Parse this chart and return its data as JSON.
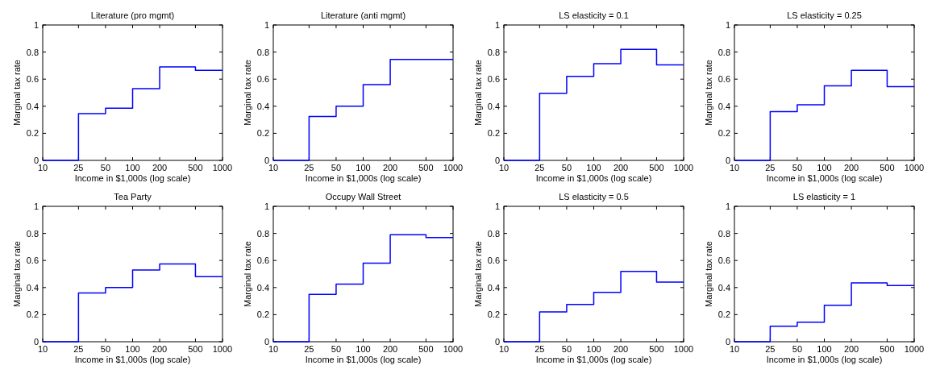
{
  "chart_data": [
    {
      "type": "step",
      "title": "Literature (pro mgmt)",
      "xlabel": "Income in $1,000s (log scale)",
      "ylabel": "Marginal tax rate",
      "log": "x",
      "x": [
        10,
        25,
        50,
        100,
        200,
        500,
        1000
      ],
      "series": [
        {
          "color": "#0000ff",
          "values": [
            0,
            0.345,
            0.385,
            0.53,
            0.69,
            0.665,
            0.665
          ]
        }
      ],
      "xlim": [
        10,
        1000
      ],
      "xticks": [
        10,
        25,
        50,
        100,
        200,
        500,
        1000
      ],
      "ylim": [
        0,
        1
      ],
      "yticks": [
        0,
        0.2,
        0.4,
        0.6,
        0.8,
        1
      ]
    },
    {
      "type": "step",
      "title": "Literature (anti mgmt)",
      "xlabel": "Income in $1,000s (log scale)",
      "ylabel": "Marginal tax rate",
      "log": "x",
      "x": [
        10,
        25,
        50,
        100,
        200,
        500,
        1000
      ],
      "series": [
        {
          "color": "#0000ff",
          "values": [
            0,
            0.325,
            0.4,
            0.56,
            0.745,
            0.745,
            0.745
          ]
        }
      ],
      "xlim": [
        10,
        1000
      ],
      "xticks": [
        10,
        25,
        50,
        100,
        200,
        500,
        1000
      ],
      "ylim": [
        0,
        1
      ],
      "yticks": [
        0,
        0.2,
        0.4,
        0.6,
        0.8,
        1
      ]
    },
    {
      "type": "step",
      "title": "LS elasticity = 0.1",
      "xlabel": "Income in $1,000s (log scale)",
      "ylabel": "Marginal tax rate",
      "log": "x",
      "x": [
        10,
        25,
        50,
        100,
        200,
        500,
        1000
      ],
      "series": [
        {
          "color": "#0000ff",
          "values": [
            0,
            0.495,
            0.62,
            0.715,
            0.82,
            0.705,
            0.705
          ]
        }
      ],
      "xlim": [
        10,
        1000
      ],
      "xticks": [
        10,
        25,
        50,
        100,
        200,
        500,
        1000
      ],
      "ylim": [
        0,
        1
      ],
      "yticks": [
        0,
        0.2,
        0.4,
        0.6,
        0.8,
        1
      ]
    },
    {
      "type": "step",
      "title": "LS elasticity = 0.25",
      "xlabel": "Income in $1,000s (log scale)",
      "ylabel": "Marginal tax rate",
      "log": "x",
      "x": [
        10,
        25,
        50,
        100,
        200,
        500,
        1000
      ],
      "series": [
        {
          "color": "#0000ff",
          "values": [
            0,
            0.36,
            0.41,
            0.55,
            0.665,
            0.545,
            0.545
          ]
        }
      ],
      "xlim": [
        10,
        1000
      ],
      "xticks": [
        10,
        25,
        50,
        100,
        200,
        500,
        1000
      ],
      "ylim": [
        0,
        1
      ],
      "yticks": [
        0,
        0.2,
        0.4,
        0.6,
        0.8,
        1
      ]
    },
    {
      "type": "step",
      "title": "Tea Party",
      "xlabel": "Income in $1,000s (log scale)",
      "ylabel": "Marginal tax rate",
      "log": "x",
      "x": [
        10,
        25,
        50,
        100,
        200,
        500,
        1000
      ],
      "series": [
        {
          "color": "#0000ff",
          "values": [
            0,
            0.36,
            0.4,
            0.53,
            0.575,
            0.48,
            0.48
          ]
        }
      ],
      "xlim": [
        10,
        1000
      ],
      "xticks": [
        10,
        25,
        50,
        100,
        200,
        500,
        1000
      ],
      "ylim": [
        0,
        1
      ],
      "yticks": [
        0,
        0.2,
        0.4,
        0.6,
        0.8,
        1
      ]
    },
    {
      "type": "step",
      "title": "Occupy Wall Street",
      "xlabel": "Income in $1,000s (log scale)",
      "ylabel": "Marginal tax rate",
      "log": "x",
      "x": [
        10,
        25,
        50,
        100,
        200,
        500,
        1000
      ],
      "series": [
        {
          "color": "#0000ff",
          "values": [
            0,
            0.35,
            0.425,
            0.58,
            0.79,
            0.77,
            0.77
          ]
        }
      ],
      "xlim": [
        10,
        1000
      ],
      "xticks": [
        10,
        25,
        50,
        100,
        200,
        500,
        1000
      ],
      "ylim": [
        0,
        1
      ],
      "yticks": [
        0,
        0.2,
        0.4,
        0.6,
        0.8,
        1
      ]
    },
    {
      "type": "step",
      "title": "LS elasticity = 0.5",
      "xlabel": "Income in $1,000s (log scale)",
      "ylabel": "Marginal tax rate",
      "log": "x",
      "x": [
        10,
        25,
        50,
        100,
        200,
        500,
        1000
      ],
      "series": [
        {
          "color": "#0000ff",
          "values": [
            0,
            0.22,
            0.275,
            0.365,
            0.52,
            0.44,
            0.44
          ]
        }
      ],
      "xlim": [
        10,
        1000
      ],
      "xticks": [
        10,
        25,
        50,
        100,
        200,
        500,
        1000
      ],
      "ylim": [
        0,
        1
      ],
      "yticks": [
        0,
        0.2,
        0.4,
        0.6,
        0.8,
        1
      ]
    },
    {
      "type": "step",
      "title": "LS elasticity = 1",
      "xlabel": "Income in $1,000s (log scale)",
      "ylabel": "Marginal tax rate",
      "log": "x",
      "x": [
        10,
        25,
        50,
        100,
        200,
        500,
        1000
      ],
      "series": [
        {
          "color": "#0000ff",
          "values": [
            0,
            0.115,
            0.145,
            0.27,
            0.435,
            0.415,
            0.415
          ]
        }
      ],
      "xlim": [
        10,
        1000
      ],
      "xticks": [
        10,
        25,
        50,
        100,
        200,
        500,
        1000
      ],
      "ylim": [
        0,
        1
      ],
      "yticks": [
        0,
        0.2,
        0.4,
        0.6,
        0.8,
        1
      ]
    }
  ]
}
